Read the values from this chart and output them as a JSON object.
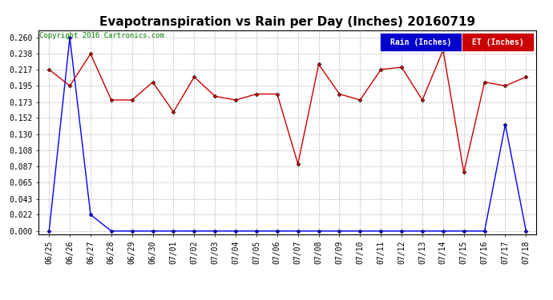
{
  "title": "Evapotranspiration vs Rain per Day (Inches) 20160719",
  "copyright": "Copyright 2016 Cartronics.com",
  "x_labels": [
    "06/25",
    "06/26",
    "06/27",
    "06/28",
    "06/29",
    "06/30",
    "07/01",
    "07/02",
    "07/03",
    "07/04",
    "07/05",
    "07/06",
    "07/07",
    "07/08",
    "07/09",
    "07/10",
    "07/11",
    "07/12",
    "07/13",
    "07/14",
    "07/15",
    "07/16",
    "07/17",
    "07/18"
  ],
  "rain_values": [
    0.0,
    0.26,
    0.022,
    0.0,
    0.0,
    0.0,
    0.0,
    0.0,
    0.0,
    0.0,
    0.0,
    0.0,
    0.0,
    0.0,
    0.0,
    0.0,
    0.0,
    0.0,
    0.0,
    0.0,
    0.0,
    0.0,
    0.143,
    0.0
  ],
  "et_values": [
    0.217,
    0.195,
    0.238,
    0.176,
    0.176,
    0.2,
    0.16,
    0.207,
    0.181,
    0.176,
    0.184,
    0.184,
    0.09,
    0.224,
    0.184,
    0.176,
    0.217,
    0.22,
    0.176,
    0.243,
    0.079,
    0.2,
    0.195,
    0.207
  ],
  "rain_color": "#0000FF",
  "et_color": "#CC0000",
  "bg_color": "#FFFFFF",
  "grid_color": "#BBBBBB",
  "y_ticks": [
    0.0,
    0.022,
    0.043,
    0.065,
    0.087,
    0.108,
    0.13,
    0.152,
    0.173,
    0.195,
    0.217,
    0.238,
    0.26
  ],
  "legend_rain_bg": "#0000CC",
  "legend_et_bg": "#CC0000",
  "title_fontsize": 11,
  "tick_fontsize": 7,
  "copyright_fontsize": 6.5,
  "legend_fontsize": 7
}
